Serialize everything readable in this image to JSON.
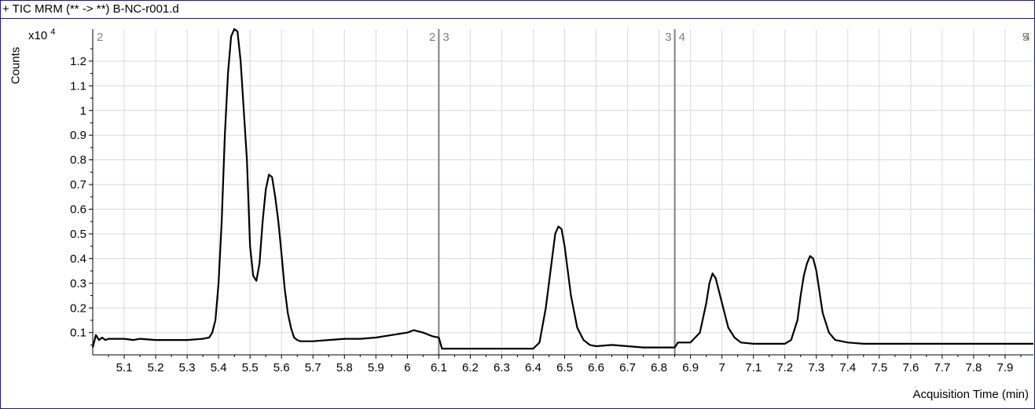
{
  "title": "+ TIC MRM (** -> **) B-NC-r001.d",
  "colors": {
    "trace": "#000000",
    "grid": "#d9d9d9",
    "segment_line": "#808080",
    "segment_label": "#808080",
    "frame": "#1a1a8c"
  },
  "chart_data": {
    "type": "line",
    "title": "+ TIC MRM (** -> **) B-NC-r001.d",
    "xlabel": "Acquisition Time (min)",
    "ylabel": "Counts",
    "y_multiplier": "x10",
    "y_multiplier_exp": "4",
    "xlim": [
      5.0,
      7.99
    ],
    "ylim": [
      0.01,
      1.33
    ],
    "grid": true,
    "legend": "none",
    "x_ticks": [
      5.1,
      5.2,
      5.3,
      5.4,
      5.5,
      5.6,
      5.7,
      5.8,
      5.9,
      6,
      6.1,
      6.2,
      6.3,
      6.4,
      6.5,
      6.6,
      6.7,
      6.8,
      6.9,
      7,
      7.1,
      7.2,
      7.3,
      7.4,
      7.5,
      7.6,
      7.7,
      7.8,
      7.9
    ],
    "x_tick_labels": [
      "5.1",
      "5.2",
      "5.3",
      "5.4",
      "5.5",
      "5.6",
      "5.7",
      "5.8",
      "5.9",
      "6",
      "6.1",
      "6.2",
      "6.3",
      "6.4",
      "6.5",
      "6.6",
      "6.7",
      "6.8",
      "6.9",
      "7",
      "7.1",
      "7.2",
      "7.3",
      "7.4",
      "7.5",
      "7.6",
      "7.7",
      "7.8",
      "7.9"
    ],
    "y_ticks": [
      0.1,
      0.2,
      0.3,
      0.4,
      0.5,
      0.6,
      0.7,
      0.8,
      0.9,
      1,
      1.1,
      1.2
    ],
    "y_tick_labels": [
      "0.1",
      "0.2",
      "0.3",
      "0.4",
      "0.5",
      "0.6",
      "0.7",
      "0.8",
      "0.9",
      "1",
      "1.1",
      "1.2"
    ],
    "segments": [
      {
        "start": 5.0,
        "end": 6.1,
        "start_label": "2",
        "end_label": "2"
      },
      {
        "start": 6.1,
        "end": 6.85,
        "start_label": "3",
        "end_label": "3"
      },
      {
        "start": 6.85,
        "end": 7.99,
        "start_label": "4",
        "end_label": "4"
      }
    ],
    "edge_label": "5",
    "series": [
      {
        "x": [
          5.0,
          5.01,
          5.02,
          5.03,
          5.04,
          5.05,
          5.1,
          5.13,
          5.15,
          5.2,
          5.25,
          5.3,
          5.35,
          5.37,
          5.38,
          5.39,
          5.4,
          5.41,
          5.42,
          5.43,
          5.44,
          5.45,
          5.46,
          5.47,
          5.48,
          5.49,
          5.5,
          5.51,
          5.52,
          5.53,
          5.54,
          5.55,
          5.56,
          5.57,
          5.58,
          5.59,
          5.6,
          5.61,
          5.62,
          5.63,
          5.64,
          5.65,
          5.66,
          5.67,
          5.7,
          5.75,
          5.8,
          5.85,
          5.9,
          5.95,
          6.0,
          6.02,
          6.05,
          6.08,
          6.1,
          6.11,
          6.2,
          6.3,
          6.4,
          6.42,
          6.44,
          6.46,
          6.47,
          6.48,
          6.49,
          6.5,
          6.52,
          6.54,
          6.56,
          6.58,
          6.6,
          6.65,
          6.7,
          6.75,
          6.8,
          6.85,
          6.86,
          6.9,
          6.93,
          6.95,
          6.96,
          6.97,
          6.98,
          7.0,
          7.02,
          7.04,
          7.06,
          7.1,
          7.15,
          7.2,
          7.22,
          7.24,
          7.25,
          7.26,
          7.27,
          7.28,
          7.29,
          7.3,
          7.32,
          7.34,
          7.36,
          7.4,
          7.45,
          7.5,
          7.55,
          7.6,
          7.7,
          7.8,
          7.9,
          7.99
        ],
        "y": [
          0.04,
          0.09,
          0.07,
          0.08,
          0.07,
          0.075,
          0.075,
          0.07,
          0.075,
          0.07,
          0.07,
          0.07,
          0.075,
          0.08,
          0.1,
          0.15,
          0.3,
          0.55,
          0.9,
          1.15,
          1.3,
          1.33,
          1.32,
          1.2,
          1.0,
          0.8,
          0.45,
          0.33,
          0.31,
          0.38,
          0.55,
          0.68,
          0.74,
          0.73,
          0.65,
          0.55,
          0.42,
          0.28,
          0.18,
          0.12,
          0.08,
          0.07,
          0.065,
          0.065,
          0.065,
          0.07,
          0.075,
          0.075,
          0.08,
          0.09,
          0.1,
          0.11,
          0.1,
          0.085,
          0.08,
          0.035,
          0.035,
          0.035,
          0.035,
          0.06,
          0.2,
          0.4,
          0.5,
          0.53,
          0.52,
          0.45,
          0.25,
          0.12,
          0.07,
          0.05,
          0.045,
          0.05,
          0.045,
          0.04,
          0.04,
          0.04,
          0.06,
          0.06,
          0.1,
          0.22,
          0.3,
          0.34,
          0.32,
          0.22,
          0.12,
          0.08,
          0.06,
          0.055,
          0.055,
          0.055,
          0.07,
          0.15,
          0.25,
          0.33,
          0.38,
          0.41,
          0.4,
          0.35,
          0.18,
          0.1,
          0.07,
          0.06,
          0.055,
          0.055,
          0.055,
          0.055,
          0.055,
          0.055,
          0.055,
          0.055
        ]
      }
    ]
  }
}
